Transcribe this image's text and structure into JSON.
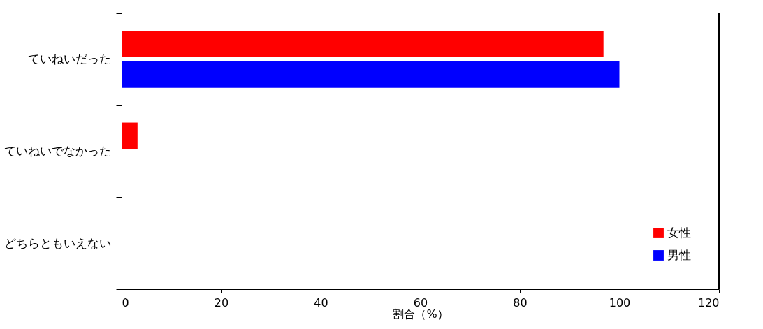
{
  "chart_data": {
    "type": "bar",
    "orientation": "horizontal",
    "categories": [
      "ていねいだった",
      "ていねいでなかった",
      "どちらともいえない"
    ],
    "series": [
      {
        "name": "女性",
        "color": "#ff0000",
        "values": [
          96.8,
          3.2,
          0
        ]
      },
      {
        "name": "男性",
        "color": "#0000ff",
        "values": [
          100,
          0,
          0
        ]
      }
    ],
    "xlabel": "割合（%）",
    "xlim": [
      0,
      120
    ],
    "xticks": [
      0,
      20,
      40,
      60,
      80,
      100,
      120
    ],
    "grid": false,
    "legend": "bottom right"
  }
}
